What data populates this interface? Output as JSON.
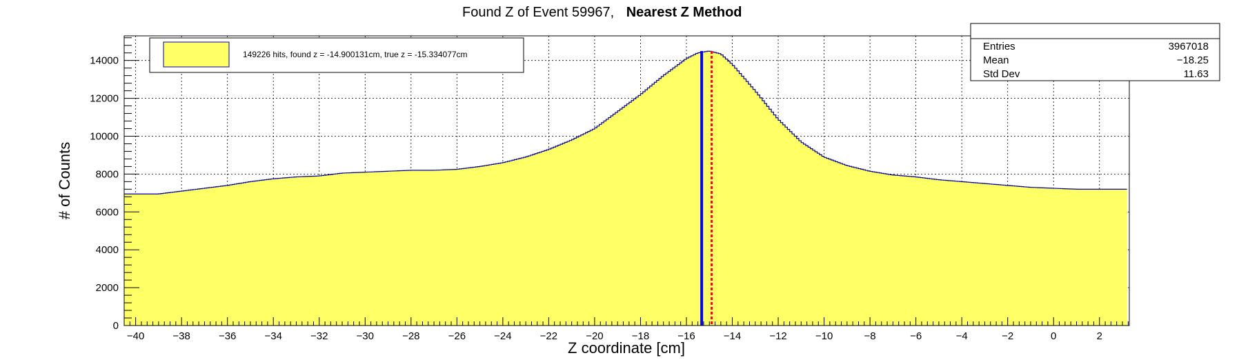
{
  "chart_data": {
    "type": "histogram",
    "title": "Found Z of Event 59967,",
    "title_bold": "Nearest Z Method",
    "xlabel": "Z coordinate [cm]",
    "ylabel": "# of Counts",
    "xlim": [
      -40.5,
      3.3
    ],
    "ylim": [
      0,
      15300
    ],
    "x_ticks": [
      -40,
      -38,
      -36,
      -34,
      -32,
      -30,
      -28,
      -26,
      -24,
      -22,
      -20,
      -18,
      -16,
      -14,
      -12,
      -10,
      -8,
      -6,
      -4,
      -2,
      0,
      2
    ],
    "y_ticks": [
      0,
      2000,
      4000,
      6000,
      8000,
      10000,
      12000,
      14000
    ],
    "grid": true,
    "fill_color": "#ffff66",
    "line_color": "#000099",
    "series": [
      {
        "x": [
          -40.5,
          -40,
          -39,
          -38,
          -37,
          -36,
          -35,
          -34,
          -33,
          -32,
          -31,
          -30,
          -29,
          -28,
          -27,
          -26,
          -25,
          -24,
          -23,
          -22,
          -21,
          -20,
          -19,
          -18,
          -17,
          -16,
          -15.5,
          -15,
          -14.5,
          -14,
          -13,
          -12,
          -11,
          -10,
          -9,
          -8,
          -7,
          -6,
          -5,
          -4,
          -3,
          -2,
          -1,
          0,
          1,
          2,
          3.2
        ],
        "y": [
          6950,
          6950,
          6950,
          7100,
          7250,
          7400,
          7600,
          7750,
          7850,
          7900,
          8050,
          8100,
          8150,
          8200,
          8200,
          8250,
          8400,
          8600,
          8900,
          9300,
          9800,
          10400,
          11300,
          12200,
          13200,
          14100,
          14400,
          14500,
          14350,
          13800,
          12400,
          10900,
          9700,
          8900,
          8450,
          8150,
          7950,
          7850,
          7700,
          7600,
          7500,
          7400,
          7300,
          7250,
          7200,
          7200,
          7200
        ]
      }
    ],
    "lines": [
      {
        "x": -15.334077,
        "color": "#0000ff",
        "style": "solid"
      },
      {
        "x": -14.900131,
        "color": "#ff0000",
        "style": "dotted"
      }
    ],
    "legend": {
      "position": "top-left",
      "text": "149226 hits, found z = -14.900131cm, true z = -15.334077cm"
    },
    "stats": {
      "position": "top-right",
      "rows": [
        {
          "label": "Entries",
          "value": "3967018"
        },
        {
          "label": "Mean",
          "value": "−18.25"
        },
        {
          "label": "Std Dev",
          "value": "11.63"
        }
      ]
    }
  }
}
